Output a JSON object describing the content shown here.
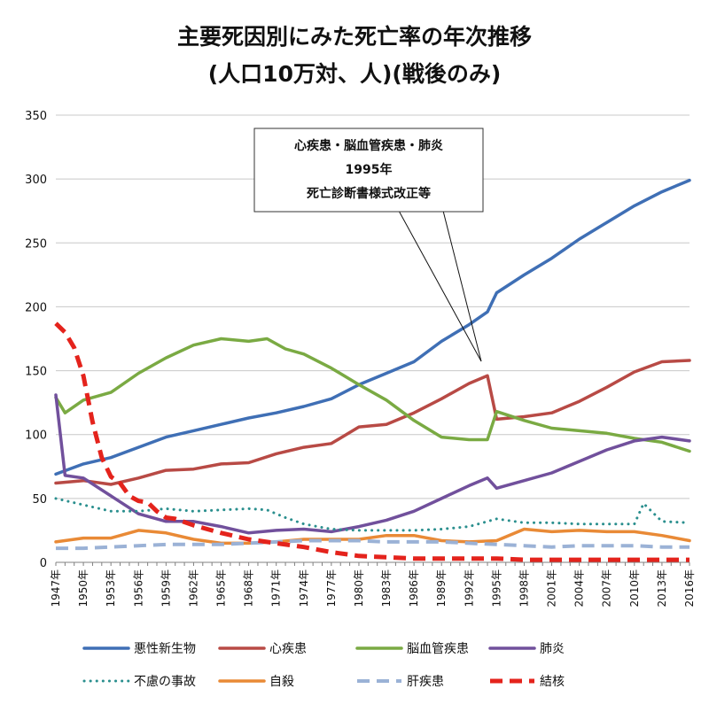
{
  "chart_data": {
    "type": "line",
    "title": "主要死因別にみた死亡率の年次推移",
    "subtitle": "(人口10万対、人)(戦後のみ)",
    "xlabel": "",
    "ylabel": "",
    "ylim": [
      0,
      350
    ],
    "yticks": [
      "0",
      "50",
      "100",
      "150",
      "200",
      "250",
      "300",
      "350"
    ],
    "xlim": [
      1947,
      2016
    ],
    "xticks": [
      "1947年",
      "1950年",
      "1953年",
      "1956年",
      "1959年",
      "1962年",
      "1965年",
      "1968年",
      "1971年",
      "1974年",
      "1977年",
      "1980年",
      "1983年",
      "1986年",
      "1989年",
      "1992年",
      "1995年",
      "1998年",
      "2001年",
      "2004年",
      "2007年",
      "2010年",
      "2013年",
      "2016年"
    ],
    "grid": true,
    "legend_position": "bottom",
    "annotation": {
      "lines": [
        "心疾患・脳血管疾患・肺炎",
        "1995年",
        "死亡診断書様式改正等"
      ],
      "points_to_year": 1994
    },
    "series": [
      {
        "name": "悪性新生物",
        "color": "#3f6fb5",
        "style": "solid",
        "points": [
          [
            1947,
            69
          ],
          [
            1950,
            77
          ],
          [
            1953,
            82
          ],
          [
            1956,
            90
          ],
          [
            1959,
            98
          ],
          [
            1962,
            103
          ],
          [
            1965,
            108
          ],
          [
            1968,
            113
          ],
          [
            1971,
            117
          ],
          [
            1974,
            122
          ],
          [
            1977,
            128
          ],
          [
            1980,
            139
          ],
          [
            1983,
            148
          ],
          [
            1986,
            157
          ],
          [
            1989,
            173
          ],
          [
            1992,
            186
          ],
          [
            1994,
            196
          ],
          [
            1995,
            211
          ],
          [
            1998,
            225
          ],
          [
            2001,
            238
          ],
          [
            2004,
            253
          ],
          [
            2007,
            266
          ],
          [
            2010,
            279
          ],
          [
            2013,
            290
          ],
          [
            2016,
            299
          ]
        ]
      },
      {
        "name": "心疾患",
        "color": "#b84a45",
        "style": "solid",
        "points": [
          [
            1947,
            62
          ],
          [
            1950,
            64
          ],
          [
            1953,
            61
          ],
          [
            1956,
            66
          ],
          [
            1959,
            72
          ],
          [
            1962,
            73
          ],
          [
            1965,
            77
          ],
          [
            1968,
            78
          ],
          [
            1971,
            85
          ],
          [
            1974,
            90
          ],
          [
            1977,
            93
          ],
          [
            1980,
            106
          ],
          [
            1983,
            108
          ],
          [
            1986,
            117
          ],
          [
            1989,
            128
          ],
          [
            1992,
            140
          ],
          [
            1994,
            146
          ],
          [
            1995,
            112
          ],
          [
            1998,
            114
          ],
          [
            2001,
            117
          ],
          [
            2004,
            126
          ],
          [
            2007,
            137
          ],
          [
            2010,
            149
          ],
          [
            2013,
            157
          ],
          [
            2016,
            158
          ]
        ]
      },
      {
        "name": "脳血管疾患",
        "color": "#7aaa43",
        "style": "solid",
        "points": [
          [
            1947,
            129
          ],
          [
            1948,
            117
          ],
          [
            1950,
            127
          ],
          [
            1953,
            133
          ],
          [
            1956,
            148
          ],
          [
            1959,
            160
          ],
          [
            1962,
            170
          ],
          [
            1965,
            175
          ],
          [
            1968,
            173
          ],
          [
            1970,
            175
          ],
          [
            1972,
            167
          ],
          [
            1974,
            163
          ],
          [
            1977,
            152
          ],
          [
            1980,
            139
          ],
          [
            1983,
            127
          ],
          [
            1986,
            111
          ],
          [
            1989,
            98
          ],
          [
            1992,
            96
          ],
          [
            1994,
            96
          ],
          [
            1995,
            118
          ],
          [
            1998,
            111
          ],
          [
            2001,
            105
          ],
          [
            2004,
            103
          ],
          [
            2007,
            101
          ],
          [
            2010,
            97
          ],
          [
            2013,
            94
          ],
          [
            2016,
            87
          ]
        ]
      },
      {
        "name": "肺炎",
        "color": "#71509c",
        "style": "solid",
        "points": [
          [
            1947,
            131
          ],
          [
            1948,
            68
          ],
          [
            1950,
            66
          ],
          [
            1953,
            52
          ],
          [
            1956,
            38
          ],
          [
            1959,
            32
          ],
          [
            1962,
            32
          ],
          [
            1965,
            28
          ],
          [
            1968,
            23
          ],
          [
            1971,
            25
          ],
          [
            1974,
            26
          ],
          [
            1977,
            24
          ],
          [
            1980,
            28
          ],
          [
            1983,
            33
          ],
          [
            1986,
            40
          ],
          [
            1989,
            50
          ],
          [
            1992,
            60
          ],
          [
            1994,
            66
          ],
          [
            1995,
            58
          ],
          [
            1998,
            64
          ],
          [
            2001,
            70
          ],
          [
            2004,
            79
          ],
          [
            2007,
            88
          ],
          [
            2010,
            95
          ],
          [
            2013,
            98
          ],
          [
            2016,
            95
          ]
        ]
      },
      {
        "name": "不慮の事故",
        "color": "#2a8f8e",
        "style": "dotted",
        "points": [
          [
            1947,
            50
          ],
          [
            1950,
            45
          ],
          [
            1953,
            40
          ],
          [
            1956,
            40
          ],
          [
            1959,
            42
          ],
          [
            1962,
            40
          ],
          [
            1965,
            41
          ],
          [
            1968,
            42
          ],
          [
            1970,
            41
          ],
          [
            1972,
            35
          ],
          [
            1974,
            30
          ],
          [
            1977,
            26
          ],
          [
            1980,
            25
          ],
          [
            1983,
            25
          ],
          [
            1986,
            25
          ],
          [
            1989,
            26
          ],
          [
            1992,
            28
          ],
          [
            1995,
            34
          ],
          [
            1998,
            31
          ],
          [
            2001,
            31
          ],
          [
            2004,
            30
          ],
          [
            2007,
            30
          ],
          [
            2010,
            30
          ],
          [
            2011,
            46
          ],
          [
            2013,
            32
          ],
          [
            2016,
            31
          ]
        ]
      },
      {
        "name": "自殺",
        "color": "#e98a36",
        "style": "solid",
        "points": [
          [
            1947,
            16
          ],
          [
            1950,
            19
          ],
          [
            1953,
            19
          ],
          [
            1956,
            25
          ],
          [
            1959,
            23
          ],
          [
            1962,
            18
          ],
          [
            1965,
            15
          ],
          [
            1968,
            15
          ],
          [
            1971,
            16
          ],
          [
            1974,
            18
          ],
          [
            1977,
            18
          ],
          [
            1980,
            18
          ],
          [
            1983,
            21
          ],
          [
            1986,
            21
          ],
          [
            1989,
            17
          ],
          [
            1992,
            16
          ],
          [
            1995,
            17
          ],
          [
            1998,
            26
          ],
          [
            2001,
            24
          ],
          [
            2004,
            25
          ],
          [
            2007,
            24
          ],
          [
            2010,
            24
          ],
          [
            2013,
            21
          ],
          [
            2016,
            17
          ]
        ]
      },
      {
        "name": "肝疾患",
        "color": "#9bb2d6",
        "style": "dashed",
        "points": [
          [
            1947,
            11
          ],
          [
            1950,
            11
          ],
          [
            1953,
            12
          ],
          [
            1956,
            13
          ],
          [
            1959,
            14
          ],
          [
            1962,
            14
          ],
          [
            1965,
            14
          ],
          [
            1968,
            15
          ],
          [
            1971,
            16
          ],
          [
            1974,
            17
          ],
          [
            1977,
            17
          ],
          [
            1980,
            17
          ],
          [
            1983,
            16
          ],
          [
            1986,
            16
          ],
          [
            1989,
            16
          ],
          [
            1992,
            15
          ],
          [
            1995,
            14
          ],
          [
            1998,
            13
          ],
          [
            2001,
            12
          ],
          [
            2004,
            13
          ],
          [
            2007,
            13
          ],
          [
            2010,
            13
          ],
          [
            2013,
            12
          ],
          [
            2016,
            12
          ]
        ]
      },
      {
        "name": "結核",
        "color": "#e4231c",
        "style": "dashed-bold",
        "points": [
          [
            1947,
            187
          ],
          [
            1948,
            180
          ],
          [
            1949,
            168
          ],
          [
            1950,
            146
          ],
          [
            1951,
            110
          ],
          [
            1952,
            82
          ],
          [
            1953,
            67
          ],
          [
            1954,
            62
          ],
          [
            1955,
            52
          ],
          [
            1956,
            48
          ],
          [
            1957,
            47
          ],
          [
            1958,
            40
          ],
          [
            1959,
            35
          ],
          [
            1960,
            34
          ],
          [
            1962,
            29
          ],
          [
            1965,
            23
          ],
          [
            1968,
            18
          ],
          [
            1971,
            15
          ],
          [
            1974,
            12
          ],
          [
            1977,
            8
          ],
          [
            1980,
            5
          ],
          [
            1983,
            4
          ],
          [
            1986,
            3
          ],
          [
            1989,
            3
          ],
          [
            1992,
            3
          ],
          [
            1995,
            3
          ],
          [
            1998,
            2
          ],
          [
            2001,
            2
          ],
          [
            2004,
            2
          ],
          [
            2007,
            2
          ],
          [
            2010,
            2
          ],
          [
            2013,
            2
          ],
          [
            2016,
            2
          ]
        ]
      }
    ]
  }
}
